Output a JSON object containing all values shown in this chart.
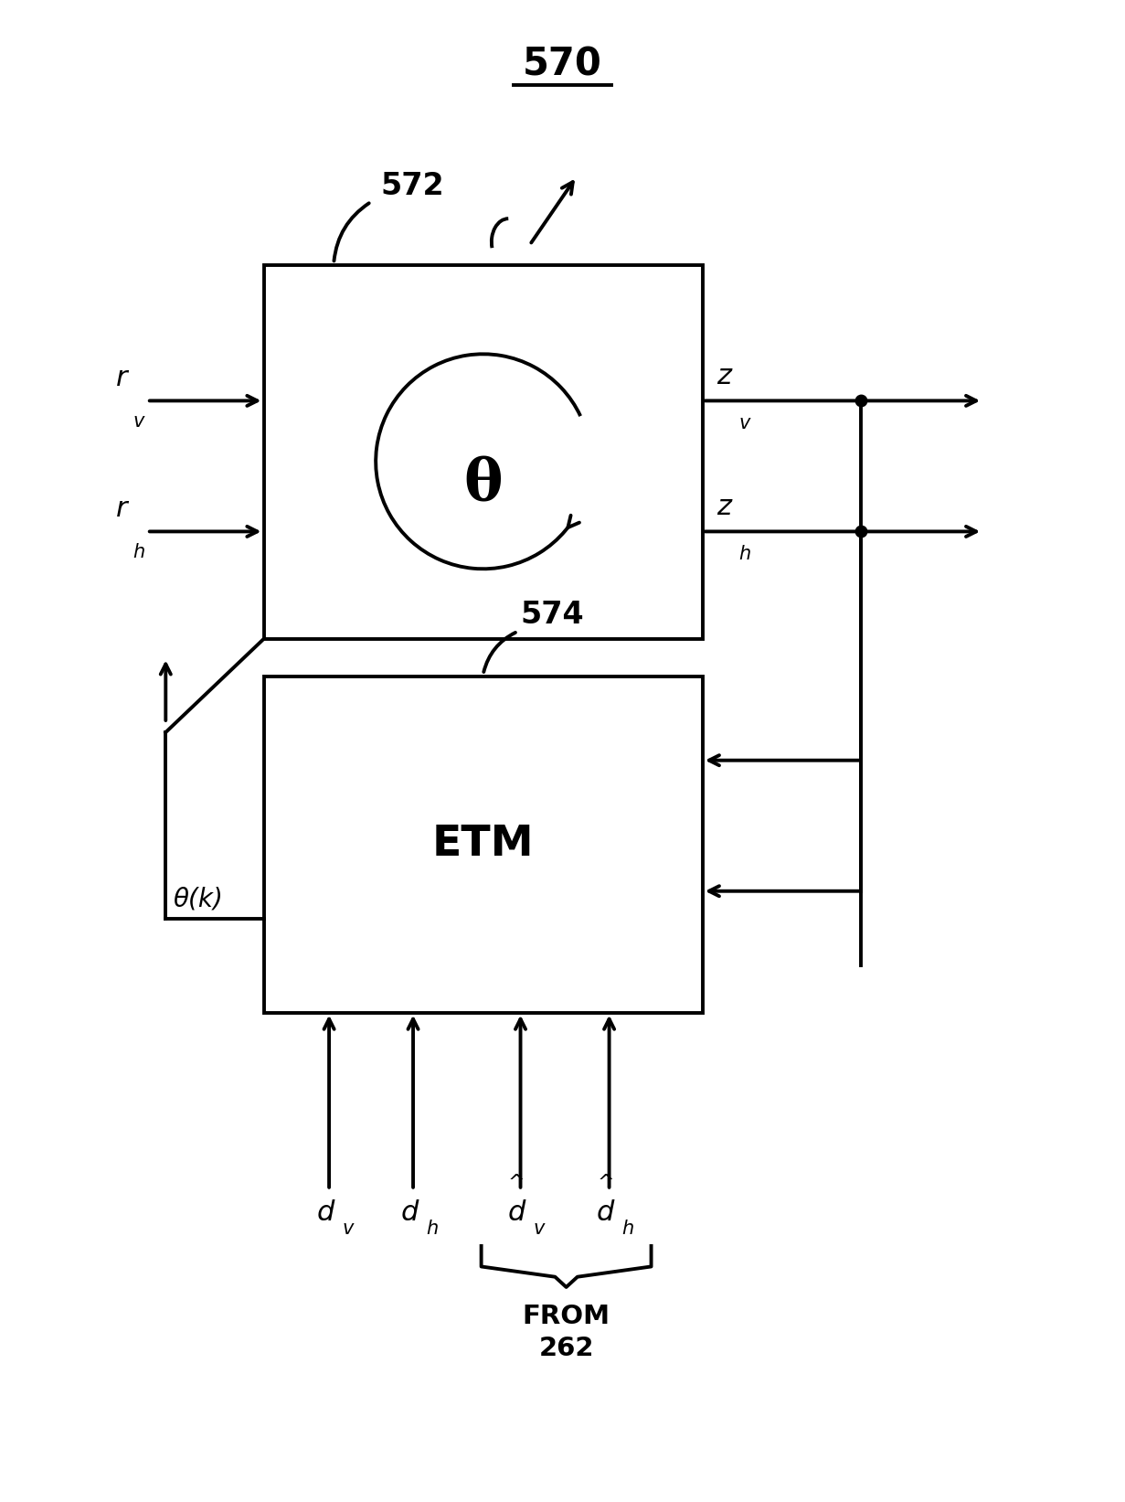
{
  "bg_color": "#ffffff",
  "line_color": "#000000",
  "fig_width": 12.31,
  "fig_height": 16.43,
  "title_label": "570",
  "label_572": "572",
  "label_574": "574",
  "label_ETM": "ETM",
  "label_theta": "θ",
  "label_theta_k": "θ(k)",
  "label_from": "FROM\n262"
}
